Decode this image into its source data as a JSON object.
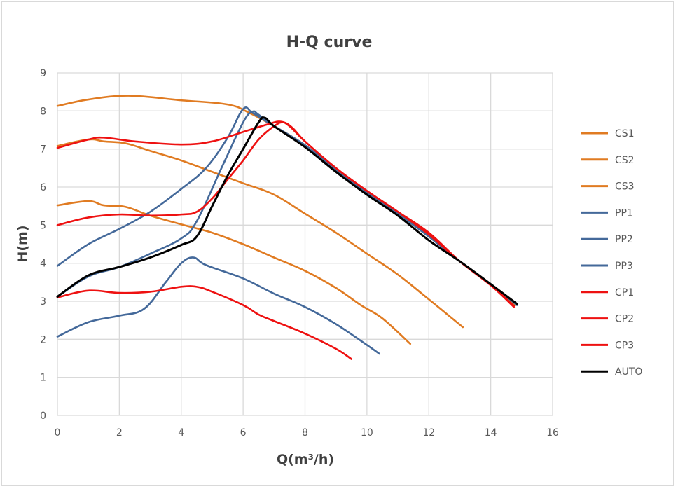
{
  "chart_data": {
    "type": "line",
    "title": "H-Q curve",
    "xlabel": "Q(m³/h)",
    "ylabel": "H(m)",
    "xlim": [
      0,
      16
    ],
    "ylim": [
      0,
      9
    ],
    "xticks": [
      0,
      2,
      4,
      6,
      8,
      10,
      12,
      14,
      16
    ],
    "yticks": [
      0,
      1,
      2,
      3,
      4,
      5,
      6,
      7,
      8,
      9
    ],
    "grid": true,
    "legend_position": "right",
    "series": [
      {
        "name": "CS1",
        "color": "#E07B22",
        "points": [
          [
            0,
            8.13
          ],
          [
            1,
            8.3
          ],
          [
            2.3,
            8.4
          ],
          [
            4,
            8.28
          ],
          [
            5.5,
            8.17
          ],
          [
            6.2,
            7.95
          ],
          [
            7,
            7.6
          ],
          [
            8,
            7.1
          ],
          [
            9,
            6.45
          ],
          [
            10,
            5.85
          ],
          [
            11,
            5.3
          ],
          [
            12,
            4.7
          ],
          [
            13,
            4.05
          ],
          [
            14,
            3.45
          ],
          [
            14.8,
            2.9
          ]
        ]
      },
      {
        "name": "CS2",
        "color": "#E07B22",
        "points": [
          [
            0,
            7.08
          ],
          [
            1,
            7.25
          ],
          [
            1.5,
            7.2
          ],
          [
            2.2,
            7.15
          ],
          [
            3,
            6.95
          ],
          [
            4,
            6.7
          ],
          [
            5,
            6.4
          ],
          [
            6,
            6.1
          ],
          [
            7,
            5.8
          ],
          [
            8,
            5.3
          ],
          [
            9,
            4.8
          ],
          [
            10,
            4.25
          ],
          [
            11,
            3.7
          ],
          [
            12,
            3.05
          ],
          [
            13.1,
            2.32
          ]
        ]
      },
      {
        "name": "CS3",
        "color": "#E07B22",
        "points": [
          [
            0,
            5.52
          ],
          [
            1,
            5.63
          ],
          [
            1.5,
            5.52
          ],
          [
            2.2,
            5.48
          ],
          [
            3,
            5.25
          ],
          [
            4,
            5.02
          ],
          [
            5,
            4.8
          ],
          [
            6,
            4.5
          ],
          [
            7,
            4.15
          ],
          [
            8,
            3.8
          ],
          [
            9,
            3.35
          ],
          [
            9.8,
            2.9
          ],
          [
            10.5,
            2.55
          ],
          [
            11.4,
            1.88
          ]
        ]
      },
      {
        "name": "PP1",
        "color": "#44699A",
        "points": [
          [
            0,
            3.93
          ],
          [
            1,
            4.5
          ],
          [
            2,
            4.9
          ],
          [
            3,
            5.35
          ],
          [
            4,
            5.95
          ],
          [
            4.8,
            6.5
          ],
          [
            5.5,
            7.3
          ],
          [
            6,
            8.05
          ],
          [
            6.3,
            7.95
          ],
          [
            6.8,
            7.7
          ],
          [
            8,
            7.1
          ],
          [
            9,
            6.45
          ],
          [
            10,
            5.85
          ],
          [
            11,
            5.3
          ],
          [
            12,
            4.7
          ],
          [
            13,
            4.05
          ],
          [
            14,
            3.45
          ],
          [
            14.85,
            2.9
          ]
        ]
      },
      {
        "name": "PP2",
        "color": "#44699A",
        "points": [
          [
            0,
            3.12
          ],
          [
            1,
            3.65
          ],
          [
            2,
            3.9
          ],
          [
            3,
            4.25
          ],
          [
            4,
            4.65
          ],
          [
            4.5,
            5.1
          ],
          [
            5.3,
            6.5
          ],
          [
            6,
            7.7
          ],
          [
            6.3,
            7.98
          ],
          [
            6.5,
            7.9
          ],
          [
            7,
            7.6
          ],
          [
            8,
            7.1
          ],
          [
            9,
            6.45
          ],
          [
            10,
            5.85
          ],
          [
            11,
            5.3
          ],
          [
            12,
            4.7
          ],
          [
            13,
            4.05
          ],
          [
            14,
            3.45
          ],
          [
            14.85,
            2.9
          ]
        ]
      },
      {
        "name": "PP3",
        "color": "#44699A",
        "points": [
          [
            0,
            2.07
          ],
          [
            1,
            2.45
          ],
          [
            2,
            2.62
          ],
          [
            2.8,
            2.8
          ],
          [
            3.5,
            3.5
          ],
          [
            4,
            4.0
          ],
          [
            4.4,
            4.15
          ],
          [
            4.8,
            3.95
          ],
          [
            6,
            3.6
          ],
          [
            7,
            3.2
          ],
          [
            8,
            2.85
          ],
          [
            9,
            2.4
          ],
          [
            10,
            1.85
          ],
          [
            10.4,
            1.62
          ]
        ]
      },
      {
        "name": "CP1",
        "color": "#EE1111",
        "points": [
          [
            0,
            7.03
          ],
          [
            1,
            7.25
          ],
          [
            1.5,
            7.3
          ],
          [
            2.5,
            7.2
          ],
          [
            4,
            7.12
          ],
          [
            5,
            7.2
          ],
          [
            6,
            7.45
          ],
          [
            6.8,
            7.65
          ],
          [
            7.2,
            7.72
          ],
          [
            7.5,
            7.6
          ],
          [
            8,
            7.2
          ],
          [
            9,
            6.5
          ],
          [
            10,
            5.9
          ],
          [
            11,
            5.35
          ],
          [
            12,
            4.8
          ],
          [
            13,
            4.05
          ],
          [
            14,
            3.42
          ],
          [
            14.75,
            2.85
          ]
        ]
      },
      {
        "name": "CP2",
        "color": "#EE1111",
        "points": [
          [
            0,
            5.0
          ],
          [
            1,
            5.2
          ],
          [
            2,
            5.28
          ],
          [
            3,
            5.25
          ],
          [
            4,
            5.28
          ],
          [
            4.5,
            5.35
          ],
          [
            5,
            5.7
          ],
          [
            5.5,
            6.2
          ],
          [
            6,
            6.7
          ],
          [
            6.5,
            7.25
          ],
          [
            7,
            7.6
          ],
          [
            7.3,
            7.7
          ],
          [
            7.6,
            7.55
          ],
          [
            8,
            7.2
          ],
          [
            9,
            6.5
          ],
          [
            10,
            5.9
          ],
          [
            11,
            5.35
          ],
          [
            12,
            4.75
          ],
          [
            13,
            4.05
          ],
          [
            14,
            3.42
          ],
          [
            14.75,
            2.88
          ]
        ]
      },
      {
        "name": "CP3",
        "color": "#EE1111",
        "points": [
          [
            0,
            3.1
          ],
          [
            1,
            3.28
          ],
          [
            2,
            3.22
          ],
          [
            3,
            3.25
          ],
          [
            4,
            3.38
          ],
          [
            4.5,
            3.38
          ],
          [
            5,
            3.25
          ],
          [
            6,
            2.9
          ],
          [
            6.5,
            2.65
          ],
          [
            7,
            2.48
          ],
          [
            8,
            2.15
          ],
          [
            9,
            1.75
          ],
          [
            9.5,
            1.48
          ]
        ]
      },
      {
        "name": "AUTO",
        "color": "#000000",
        "points": [
          [
            0,
            3.12
          ],
          [
            1,
            3.68
          ],
          [
            2,
            3.9
          ],
          [
            3,
            4.15
          ],
          [
            4,
            4.48
          ],
          [
            4.5,
            4.7
          ],
          [
            5,
            5.5
          ],
          [
            5.5,
            6.3
          ],
          [
            6,
            7.0
          ],
          [
            6.5,
            7.7
          ],
          [
            6.7,
            7.82
          ],
          [
            7,
            7.6
          ],
          [
            8,
            7.05
          ],
          [
            9,
            6.4
          ],
          [
            10,
            5.8
          ],
          [
            11,
            5.25
          ],
          [
            12,
            4.6
          ],
          [
            13,
            4.05
          ],
          [
            14,
            3.45
          ],
          [
            14.85,
            2.93
          ]
        ]
      }
    ]
  }
}
